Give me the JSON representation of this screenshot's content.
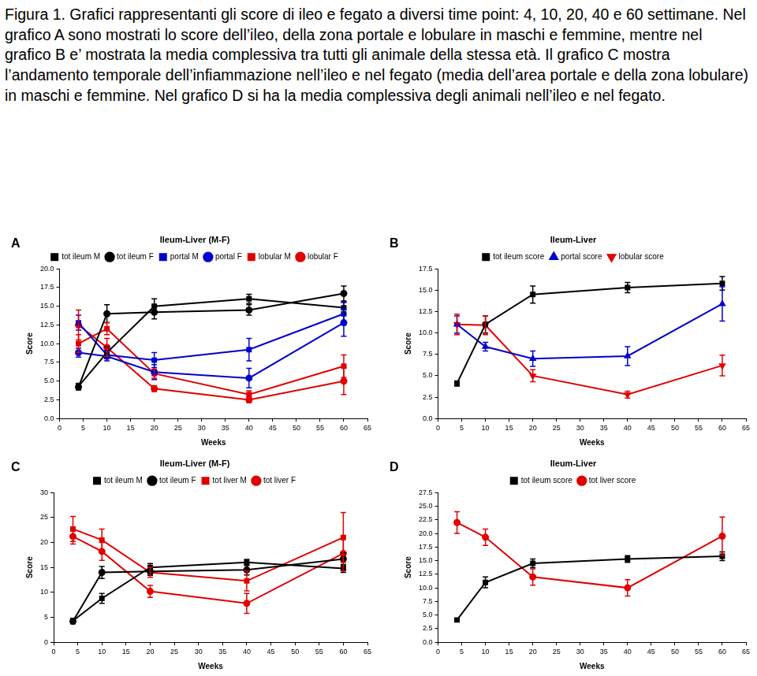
{
  "caption": "Figura 1. Grafici rappresentanti gli score di ileo e fegato a diversi time point: 4, 10, 20, 40 e 60 settimane. Nel grafico A sono mostrati lo score dell’ileo, della zona portale e lobulare in maschi e femmine, mentre nel grafico B e’ mostrata la media complessiva tra tutti gli animale della stessa età. Il grafico C mostra l’andamento temporale dell’infiammazione nell’ileo e nel fegato (media dell’area portale e della zona lobulare) in maschi e femmine. Nel grafico D si ha la media complessiva degli animali nell’ileo e nel fegato.",
  "chart_data": [
    {
      "panel": "A",
      "type": "line",
      "title": "Ileum-Liver (M-F)",
      "x_label": "Weeks",
      "y_label": "Score",
      "x": [
        4,
        10,
        20,
        40,
        60
      ],
      "xlim": [
        0,
        65
      ],
      "xticks": [
        0,
        5,
        10,
        15,
        20,
        25,
        30,
        35,
        40,
        45,
        50,
        55,
        60,
        65
      ],
      "ylim": [
        0,
        20
      ],
      "yticks": [
        {
          "value": 0,
          "label": "0.0"
        },
        {
          "value": 2.5,
          "label": "2.5"
        },
        {
          "value": 5,
          "label": "5.0"
        },
        {
          "value": 7.5,
          "label": "7.5"
        },
        {
          "value": 10,
          "label": "10.0"
        },
        {
          "value": 12.5,
          "label": "12.5"
        },
        {
          "value": 15,
          "label": "15.0"
        },
        {
          "value": 17.5,
          "label": "17.5"
        },
        {
          "value": 20,
          "label": "20.0"
        }
      ],
      "grid": false,
      "legend": "top",
      "series": [
        {
          "name": "tot ileum M",
          "color": "#000000",
          "marker": "square",
          "values": [
            4.3,
            8.8,
            15.0,
            16.0,
            14.8
          ],
          "errors": [
            0.4,
            0.8,
            1.0,
            0.6,
            0.8
          ]
        },
        {
          "name": "tot ileum F",
          "color": "#000000",
          "marker": "circle",
          "values": [
            4.2,
            14.0,
            14.2,
            14.5,
            16.7
          ],
          "errors": [
            0.4,
            1.2,
            0.9,
            0.7,
            1.0
          ]
        },
        {
          "name": "portal M",
          "color": "#0000cc",
          "marker": "square",
          "values": [
            12.8,
            8.5,
            7.8,
            9.2,
            14.0
          ],
          "errors": [
            1.0,
            0.5,
            1.0,
            1.5,
            1.5
          ]
        },
        {
          "name": "portal F",
          "color": "#0000cc",
          "marker": "circle",
          "values": [
            8.8,
            8.3,
            6.2,
            5.4,
            12.8
          ],
          "errors": [
            0.6,
            0.6,
            1.0,
            1.3,
            1.8
          ]
        },
        {
          "name": "lobular M",
          "color": "#e00000",
          "marker": "square",
          "values": [
            10.0,
            12.0,
            6.0,
            3.2,
            7.0
          ],
          "errors": [
            1.2,
            0.8,
            0.6,
            0.5,
            1.5
          ]
        },
        {
          "name": "lobular F",
          "color": "#e00000",
          "marker": "circle",
          "values": [
            12.5,
            9.5,
            4.0,
            2.5,
            5.0
          ],
          "errors": [
            2.0,
            1.2,
            0.4,
            0.4,
            1.8
          ]
        }
      ]
    },
    {
      "panel": "B",
      "type": "line",
      "title": "Ileum-Liver",
      "x_label": "Weeks",
      "y_label": "Score",
      "x": [
        4,
        10,
        20,
        40,
        60
      ],
      "xlim": [
        0,
        65
      ],
      "xticks": [
        0,
        5,
        10,
        15,
        20,
        25,
        30,
        35,
        40,
        45,
        50,
        55,
        60,
        65
      ],
      "ylim": [
        0,
        17.5
      ],
      "yticks": [
        {
          "value": 0,
          "label": "0.0"
        },
        {
          "value": 2.5,
          "label": "2.5"
        },
        {
          "value": 5,
          "label": "5.0"
        },
        {
          "value": 7.5,
          "label": "7.5"
        },
        {
          "value": 10,
          "label": "10.0"
        },
        {
          "value": 12.5,
          "label": "12.5"
        },
        {
          "value": 15,
          "label": "15.0"
        },
        {
          "value": 17.5,
          "label": "17.5"
        }
      ],
      "grid": false,
      "legend": "top",
      "series": [
        {
          "name": "tot ileum score",
          "color": "#000000",
          "marker": "square",
          "values": [
            4.1,
            11.0,
            14.5,
            15.3,
            15.8
          ],
          "errors": [
            0.3,
            1.0,
            1.0,
            0.6,
            0.8
          ]
        },
        {
          "name": "portal score",
          "color": "#0000cc",
          "marker": "triangle",
          "values": [
            11.0,
            8.4,
            7.0,
            7.3,
            13.4
          ],
          "errors": [
            1.0,
            0.5,
            0.9,
            1.1,
            2.0
          ]
        },
        {
          "name": "lobular score",
          "color": "#e00000",
          "marker": "triangle_down",
          "values": [
            11.0,
            10.9,
            5.0,
            2.8,
            6.2
          ],
          "errors": [
            1.2,
            1.1,
            0.7,
            0.4,
            1.2
          ]
        }
      ]
    },
    {
      "panel": "C",
      "type": "line",
      "title": "Ileum-Liver (M-F)",
      "x_label": "Weeks",
      "y_label": "Score",
      "x": [
        4,
        10,
        20,
        40,
        60
      ],
      "xlim": [
        0,
        65
      ],
      "xticks": [
        0,
        5,
        10,
        15,
        20,
        25,
        30,
        35,
        40,
        45,
        50,
        55,
        60,
        65
      ],
      "ylim": [
        0,
        30
      ],
      "yticks": [
        0,
        5,
        10,
        15,
        20,
        25,
        30
      ],
      "grid": false,
      "legend": "top",
      "series": [
        {
          "name": "tot ileum M",
          "color": "#000000",
          "marker": "square",
          "values": [
            4.3,
            8.8,
            15.0,
            16.0,
            14.8
          ],
          "errors": [
            0.5,
            1.0,
            0.8,
            0.6,
            0.8
          ]
        },
        {
          "name": "tot ileum F",
          "color": "#000000",
          "marker": "circle",
          "values": [
            4.2,
            14.0,
            14.2,
            14.5,
            16.7
          ],
          "errors": [
            0.5,
            1.2,
            0.8,
            1.0,
            1.2
          ]
        },
        {
          "name": "tot liver M",
          "color": "#e00000",
          "marker": "square",
          "values": [
            22.7,
            20.5,
            14.0,
            12.3,
            21.0
          ],
          "errors": [
            2.5,
            2.2,
            1.0,
            2.0,
            5.0
          ]
        },
        {
          "name": "tot liver F",
          "color": "#e00000",
          "marker": "circle",
          "values": [
            21.2,
            18.2,
            10.2,
            7.8,
            17.8
          ],
          "errors": [
            1.5,
            1.8,
            1.2,
            2.0,
            3.5
          ]
        }
      ]
    },
    {
      "panel": "D",
      "type": "line",
      "title": "Ileum-Liver",
      "x_label": "Weeks",
      "y_label": "Score",
      "x": [
        4,
        10,
        20,
        40,
        60
      ],
      "xlim": [
        0,
        65
      ],
      "xticks": [
        0,
        5,
        10,
        15,
        20,
        25,
        30,
        35,
        40,
        45,
        50,
        55,
        60,
        65
      ],
      "ylim": [
        0,
        27.5
      ],
      "yticks": [
        {
          "value": 0,
          "label": "0.0"
        },
        {
          "value": 2.5,
          "label": "2.5"
        },
        {
          "value": 5,
          "label": "5.0"
        },
        {
          "value": 7.5,
          "label": "7.5"
        },
        {
          "value": 10,
          "label": "10.0"
        },
        {
          "value": 12.5,
          "label": "12.5"
        },
        {
          "value": 15,
          "label": "15.0"
        },
        {
          "value": 17.5,
          "label": "17.5"
        },
        {
          "value": 20,
          "label": "20.0"
        },
        {
          "value": 22.5,
          "label": "22.5"
        },
        {
          "value": 25,
          "label": "25.0"
        },
        {
          "value": 27.5,
          "label": "27.5"
        }
      ],
      "grid": false,
      "legend": "top",
      "series": [
        {
          "name": "tot ileum score",
          "color": "#000000",
          "marker": "square",
          "values": [
            4.1,
            11.0,
            14.5,
            15.3,
            15.8
          ],
          "errors": [
            0.3,
            1.0,
            0.8,
            0.6,
            0.8
          ]
        },
        {
          "name": "tot liver score",
          "color": "#e00000",
          "marker": "circle",
          "values": [
            22.0,
            19.3,
            12.0,
            10.0,
            19.5
          ],
          "errors": [
            2.0,
            1.5,
            1.5,
            1.5,
            3.5
          ]
        }
      ]
    }
  ]
}
